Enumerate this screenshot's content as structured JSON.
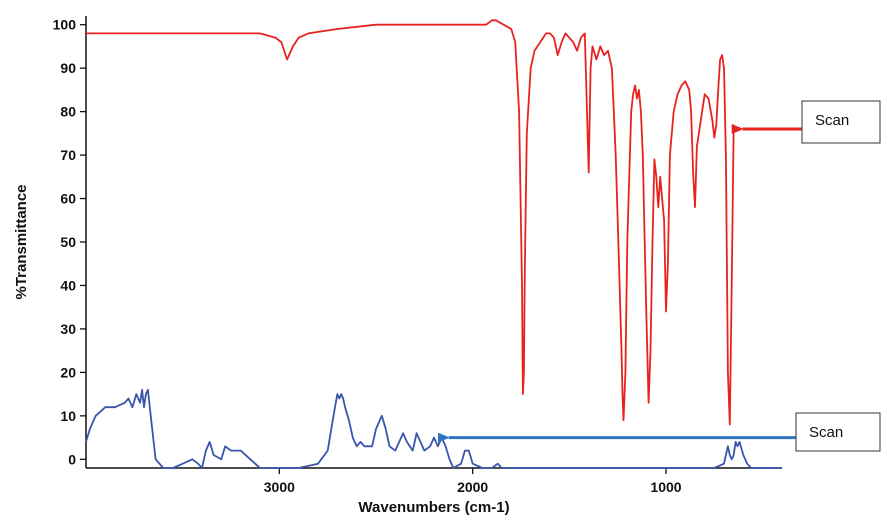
{
  "chart_data": {
    "type": "line",
    "title": "",
    "xlabel": "Wavenumbers (cm-1)",
    "ylabel": "%Transmittance",
    "xlim": [
      4000,
      400
    ],
    "ylim": [
      -2,
      102
    ],
    "x_reversed": true,
    "grid": false,
    "legend": "none",
    "x_ticks": [
      {
        "value": 3000,
        "label": "3000"
      },
      {
        "value": 2000,
        "label": "2000"
      },
      {
        "value": 1000,
        "label": "1000"
      }
    ],
    "y_ticks": [
      {
        "value": 100,
        "label": "100"
      },
      {
        "value": 90,
        "label": "90"
      },
      {
        "value": 80,
        "label": "80"
      },
      {
        "value": 70,
        "label": "70"
      },
      {
        "value": 60,
        "label": "60"
      },
      {
        "value": 50,
        "label": "50"
      },
      {
        "value": 40,
        "label": "40"
      },
      {
        "value": 30,
        "label": "30"
      },
      {
        "value": 20,
        "label": "20"
      },
      {
        "value": 10,
        "label": "10"
      },
      {
        "value": 0,
        "label": "0"
      }
    ],
    "series": [
      {
        "color": "#e8231f",
        "x": [
          4000,
          3800,
          3600,
          3400,
          3200,
          3100,
          3020,
          2990,
          2960,
          2930,
          2900,
          2850,
          2700,
          2500,
          2300,
          2150,
          2050,
          1980,
          1930,
          1900,
          1880,
          1840,
          1800,
          1780,
          1760,
          1745,
          1740,
          1735,
          1730,
          1720,
          1700,
          1680,
          1650,
          1620,
          1600,
          1580,
          1560,
          1540,
          1520,
          1500,
          1480,
          1460,
          1440,
          1420,
          1400,
          1390,
          1380,
          1360,
          1340,
          1320,
          1300,
          1280,
          1270,
          1260,
          1250,
          1240,
          1230,
          1225,
          1220,
          1210,
          1200,
          1180,
          1170,
          1160,
          1150,
          1140,
          1130,
          1120,
          1110,
          1100,
          1090,
          1080,
          1070,
          1060,
          1050,
          1040,
          1030,
          1020,
          1010,
          1000,
          990,
          980,
          960,
          940,
          920,
          900,
          880,
          870,
          860,
          850,
          840,
          820,
          800,
          780,
          760,
          750,
          740,
          730,
          720,
          710,
          700,
          690,
          680,
          670,
          660,
          650
        ],
        "values": [
          98,
          98,
          98,
          98,
          98,
          98,
          97,
          96,
          92,
          95,
          97,
          98,
          99,
          100,
          100,
          100,
          100,
          100,
          100,
          101,
          101,
          100,
          99,
          96,
          80,
          40,
          15,
          20,
          45,
          75,
          90,
          94,
          96,
          98,
          98,
          97,
          93,
          96,
          98,
          97,
          96,
          94,
          97,
          98,
          66,
          90,
          95,
          92,
          95,
          93,
          94,
          90,
          80,
          70,
          55,
          40,
          25,
          15,
          9,
          20,
          50,
          80,
          84,
          86,
          83,
          85,
          80,
          70,
          50,
          30,
          13,
          25,
          50,
          69,
          65,
          58,
          65,
          60,
          55,
          34,
          45,
          70,
          80,
          84,
          86,
          87,
          85,
          80,
          66,
          58,
          72,
          78,
          84,
          83,
          78,
          74,
          77,
          85,
          92,
          93,
          90,
          70,
          20,
          8,
          40,
          77
        ]
      },
      {
        "color": "#3b55ad",
        "x": [
          4000,
          3980,
          3950,
          3900,
          3850,
          3800,
          3780,
          3760,
          3740,
          3720,
          3710,
          3700,
          3690,
          3680,
          3660,
          3640,
          3600,
          3550,
          3500,
          3450,
          3420,
          3400,
          3380,
          3360,
          3340,
          3300,
          3280,
          3250,
          3200,
          3150,
          3100,
          3000,
          2900,
          2800,
          2750,
          2720,
          2700,
          2690,
          2680,
          2670,
          2660,
          2640,
          2620,
          2600,
          2580,
          2560,
          2520,
          2500,
          2470,
          2450,
          2430,
          2400,
          2380,
          2360,
          2340,
          2310,
          2300,
          2290,
          2270,
          2250,
          2220,
          2200,
          2180,
          2160,
          2140,
          2120,
          2100,
          2060,
          2040,
          2020,
          2000,
          1950,
          1900,
          1870,
          1850,
          1800,
          1700,
          1500,
          1300,
          1100,
          900,
          750,
          700,
          690,
          680,
          670,
          660,
          650,
          640,
          630,
          620,
          600,
          580,
          560,
          520,
          480,
          440,
          420,
          400
        ],
        "values": [
          4,
          7,
          10,
          12,
          12,
          13,
          14,
          12,
          15,
          13,
          16,
          12,
          15,
          16,
          8,
          0,
          -2,
          -2,
          -1,
          0,
          -1,
          -2,
          2,
          4,
          1,
          0,
          3,
          2,
          2,
          0,
          -2,
          -2,
          -2,
          -1,
          2,
          10,
          15,
          14,
          15,
          14,
          12,
          9,
          5,
          3,
          4,
          3,
          3,
          7,
          10,
          7,
          3,
          2,
          4,
          6,
          4,
          2,
          4,
          6,
          4,
          2,
          3,
          5,
          3,
          5,
          3,
          0,
          -2,
          -1,
          2,
          2,
          -1,
          -2,
          -2,
          -1,
          -2,
          -2,
          -2,
          -2,
          -2,
          -2,
          -2,
          -2,
          -1,
          1,
          3,
          1,
          0,
          1,
          4,
          3,
          4,
          1,
          -1,
          -2,
          -2,
          -2,
          -2,
          -2,
          -2
        ]
      }
    ],
    "annotations": [
      {
        "text": "Scan",
        "series_index": 0,
        "target_x": 660,
        "target_y": 76
      },
      {
        "text": "Scan",
        "series_index": 1,
        "target_x": 2180,
        "target_y": 5
      }
    ]
  }
}
